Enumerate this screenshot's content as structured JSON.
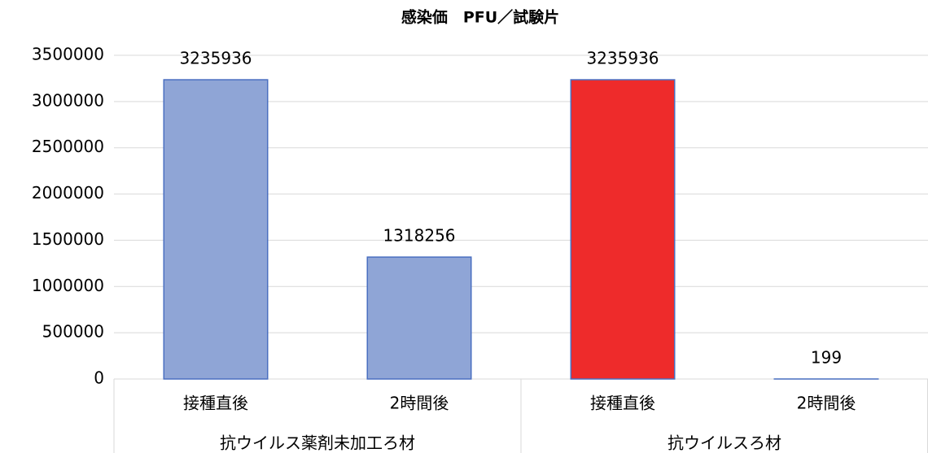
{
  "chart_data": {
    "type": "bar",
    "title": "感染価　PFU／試験片",
    "categories": [
      "接種直後",
      "2時間後",
      "接種直後",
      "2時間後"
    ],
    "groups": [
      "抗ウイルス薬剤未加工ろ材",
      "抗ウイルスろ材"
    ],
    "values": [
      3235936,
      1318256,
      3235936,
      199
    ],
    "colors": [
      "#8fa5d6",
      "#8fa5d6",
      "#ee2b2b",
      "#8fa5d6"
    ],
    "ylim": [
      0,
      3500000
    ],
    "yticks": [
      0,
      500000,
      1000000,
      1500000,
      2000000,
      2500000,
      3000000,
      3500000
    ],
    "grid": true
  }
}
